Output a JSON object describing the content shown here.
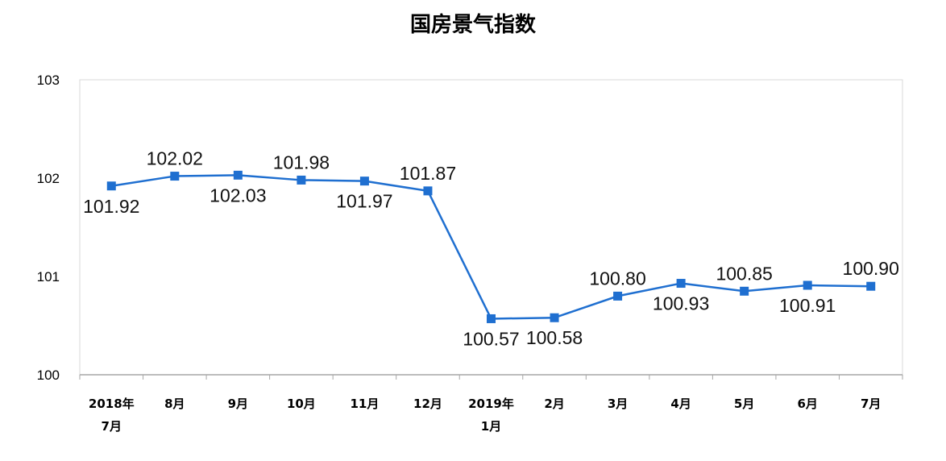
{
  "chart_data": {
    "type": "line",
    "title": "国房景气指数",
    "xlabel": "",
    "ylabel": "",
    "ylim": [
      100,
      103
    ],
    "yticks": [
      "100",
      "101",
      "102",
      "103"
    ],
    "grid": false,
    "legend": "none",
    "categories": [
      [
        "2018年",
        "7月"
      ],
      [
        "8月"
      ],
      [
        "9月"
      ],
      [
        "10月"
      ],
      [
        "11月"
      ],
      [
        "12月"
      ],
      [
        "2019年",
        "1月"
      ],
      [
        "2月"
      ],
      [
        "3月"
      ],
      [
        "4月"
      ],
      [
        "5月"
      ],
      [
        "6月"
      ],
      [
        "7月"
      ]
    ],
    "series": [
      {
        "values": [
          101.92,
          102.02,
          102.03,
          101.98,
          101.97,
          101.87,
          100.57,
          100.58,
          100.8,
          100.93,
          100.85,
          100.91,
          100.9
        ],
        "labels": [
          "101.92",
          "102.02",
          "102.03",
          "101.98",
          "101.97",
          "101.87",
          "100.57",
          "100.58",
          "100.80",
          "100.93",
          "100.85",
          "100.91",
          "100.90"
        ],
        "label_positions": [
          "below",
          "above",
          "below",
          "above",
          "below",
          "above",
          "below",
          "below",
          "above",
          "below",
          "above",
          "below",
          "above"
        ],
        "color": "#1f6fd0"
      }
    ]
  }
}
